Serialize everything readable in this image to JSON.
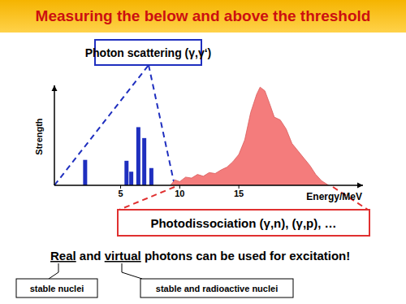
{
  "title": "Measuring the below and above the threshold",
  "scattering_box": "Photon scattering (γ,γ‘)",
  "dissociation_box": "Photodissociation (γ,n), (γ,p), …",
  "note": [
    "Real",
    " and ",
    "virtual",
    " photons can be used for excitation!"
  ],
  "labels": [
    "stable nuclei",
    "stable and radioactive nuclei"
  ],
  "chart_data": {
    "type": "bar",
    "y_label": "Strength",
    "x_label": "Energy/MeV",
    "xlim": [
      -0.6,
      25.5
    ],
    "xticks": [
      5,
      10,
      15
    ],
    "ylim": [
      0,
      110
    ],
    "tick_labels": "x",
    "grid": false,
    "series": [
      {
        "type": "bar",
        "color": "#1f2fbf",
        "x": [
          2.0,
          5.5,
          5.9,
          6.5,
          7.0,
          7.6
        ],
        "values": [
          28,
          27,
          15,
          64,
          52,
          19
        ]
      },
      {
        "type": "area",
        "color": "#f47c7c",
        "x": [
          9.2,
          9.6,
          10,
          10.5,
          11,
          11.5,
          12,
          12.5,
          13,
          13.5,
          14,
          14.5,
          15,
          15.5,
          16,
          16.5,
          16.8,
          17.2,
          17.6,
          18,
          18.5,
          19,
          19.5,
          20,
          20.5,
          21,
          21.5,
          22,
          22.6
        ],
        "values": [
          0,
          6,
          4,
          9,
          8,
          12,
          10,
          14,
          13,
          17,
          20,
          26,
          34,
          50,
          80,
          100,
          108,
          104,
          90,
          75,
          72,
          62,
          46,
          38,
          30,
          22,
          12,
          5,
          0
        ]
      }
    ]
  }
}
